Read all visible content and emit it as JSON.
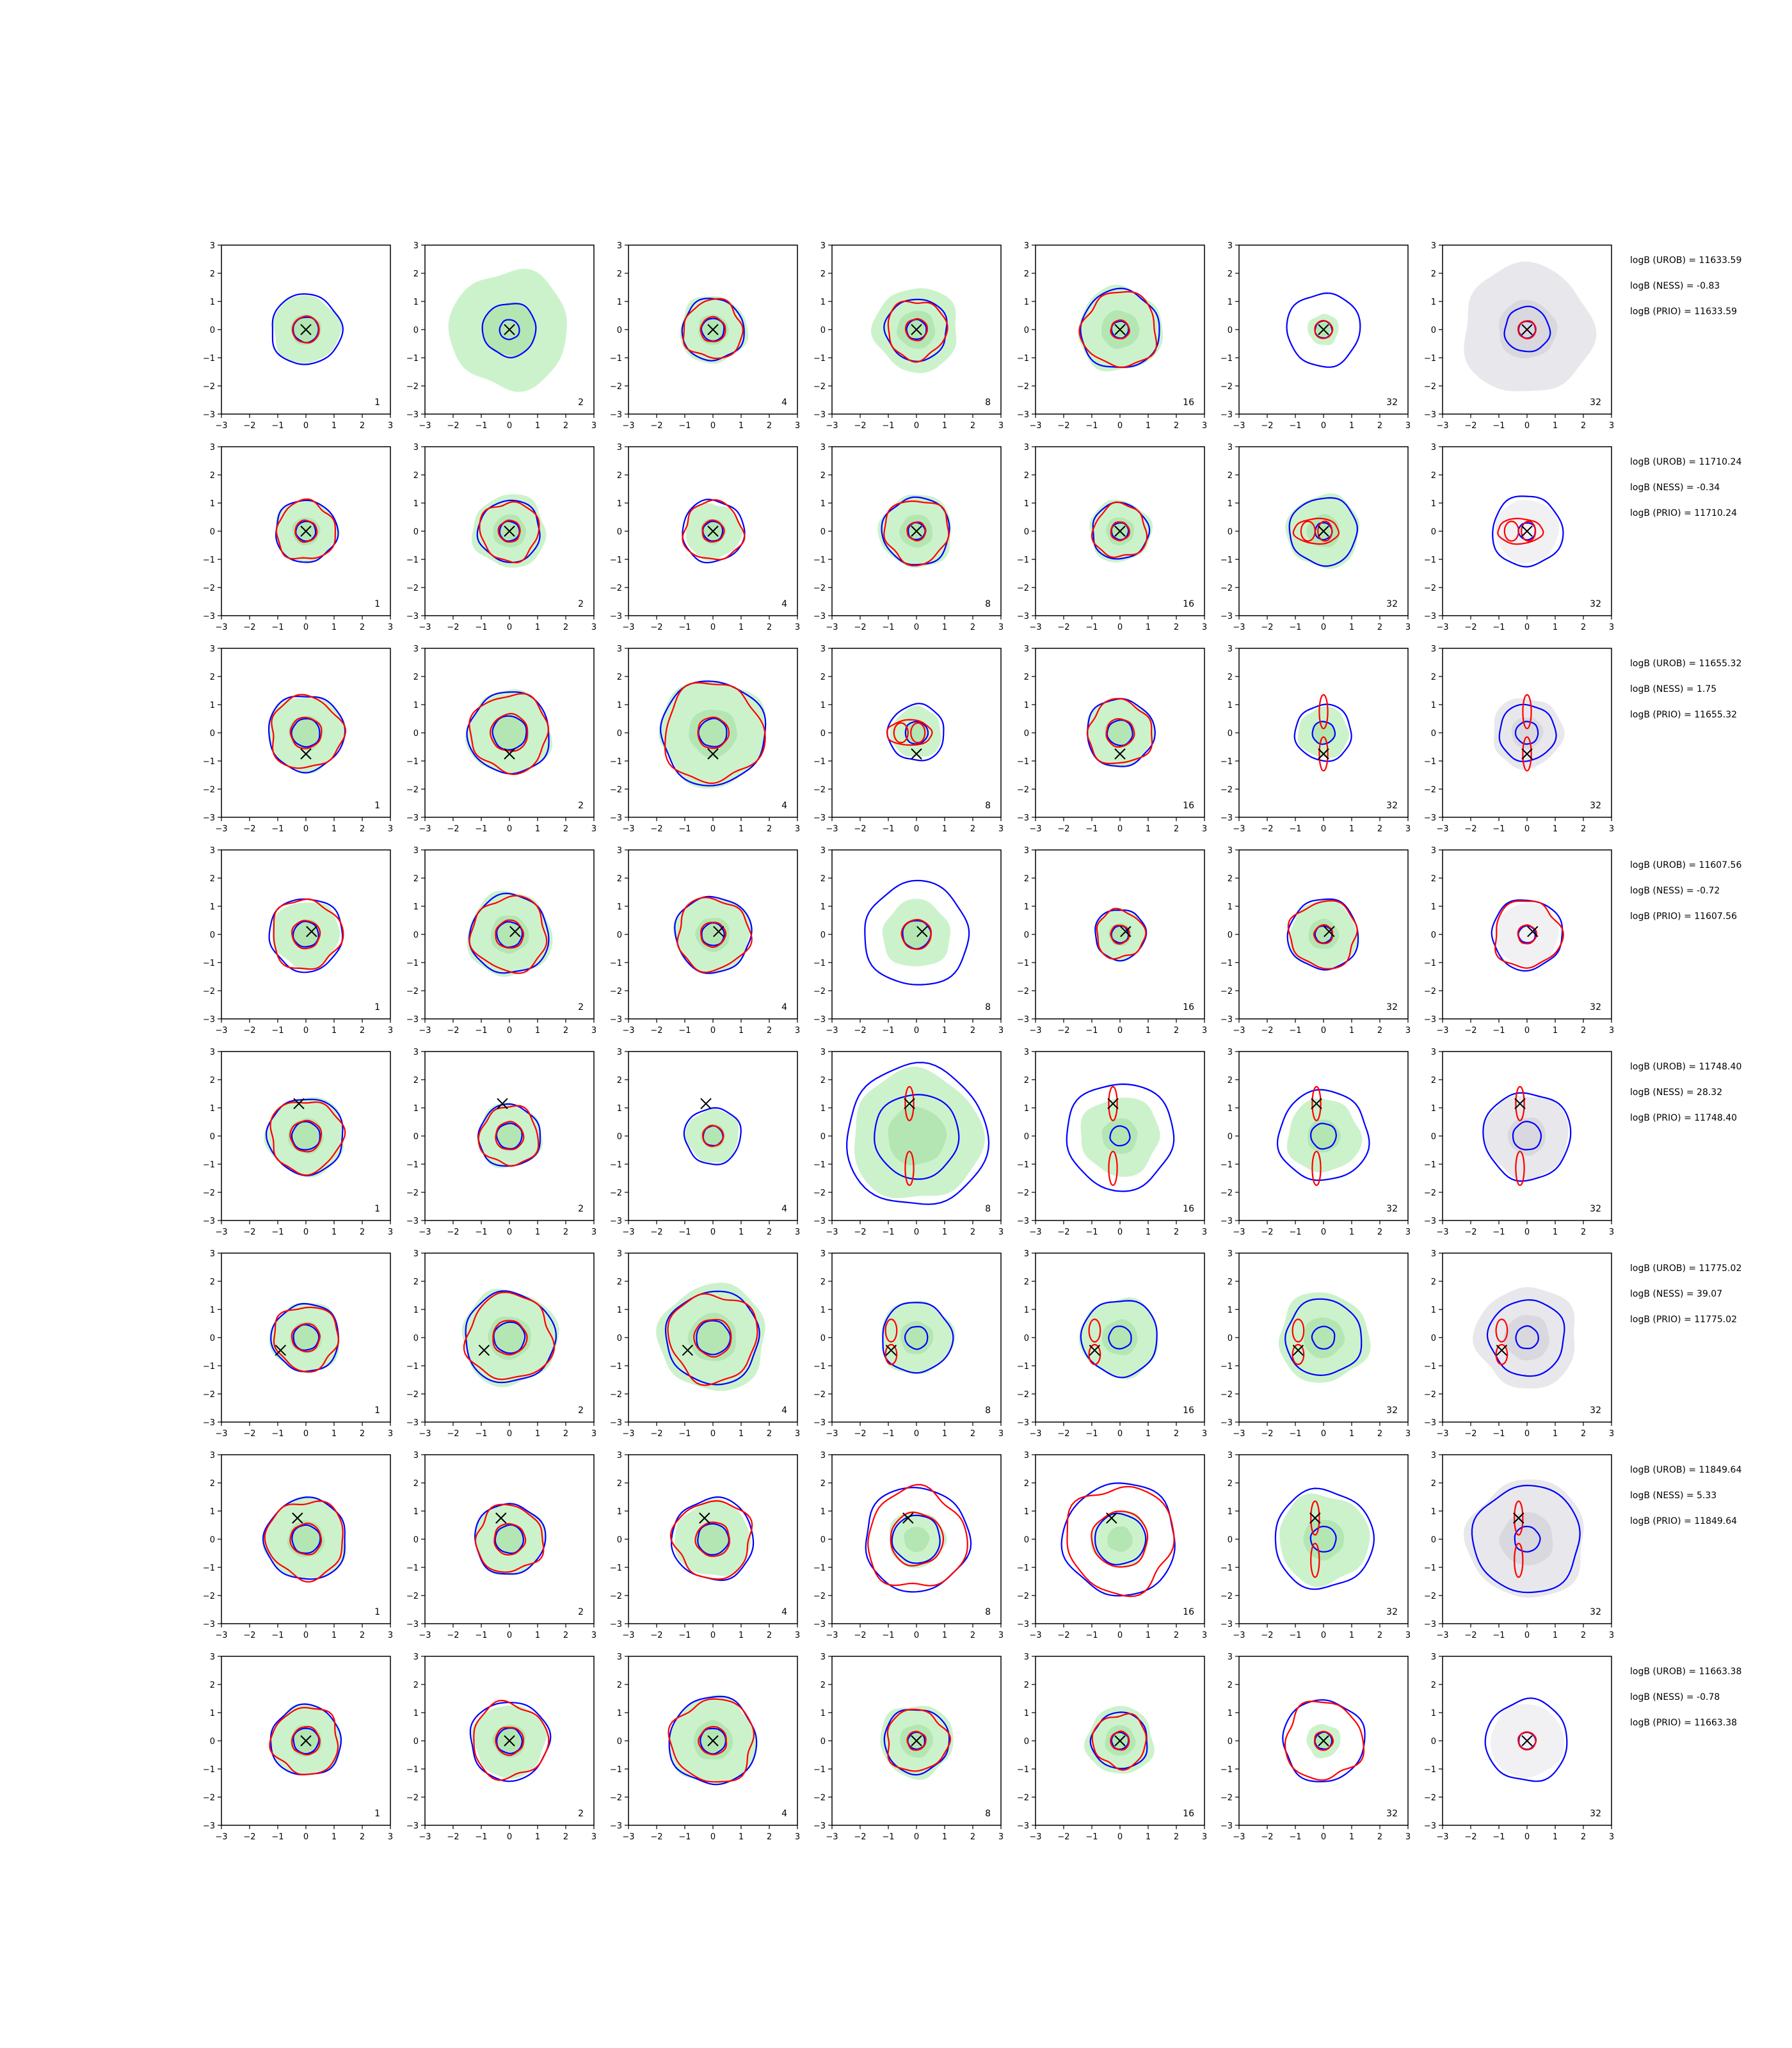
{
  "chart_data": {
    "type": "contour",
    "title": "",
    "xlabel": "",
    "ylabel": "",
    "xlim": [
      -3,
      3
    ],
    "ylim": [
      -3,
      3
    ],
    "xticks": [
      "−3",
      "−2",
      "−1",
      "0",
      "1",
      "2",
      "3"
    ],
    "yticks": [
      "−3",
      "−2",
      "−1",
      "0",
      "1",
      "2",
      "3"
    ],
    "grid": false,
    "legend": "none",
    "colors": {
      "outer_contour": "#0000ff",
      "inner_contour": "#ff0000",
      "fill_green": "#ccf2cc",
      "fill_green_inner": "#b3e6b3",
      "fill_gray": "#e8e8ec",
      "fill_gray_inner": "#d8d8de",
      "marker": "#000000"
    },
    "columns": [
      "1",
      "2",
      "4",
      "8",
      "16",
      "32",
      "32"
    ],
    "rows": [
      {
        "marker": [
          0.0,
          0.0
        ],
        "outer_radius": [
          1.25,
          0.95,
          1.1,
          1.1,
          1.4,
          1.3,
          0.8
        ],
        "inner_radius": [
          0.45,
          0.35,
          0.4,
          0.35,
          0.3,
          0.3,
          0.3
        ],
        "inner_shape": [
          "ring",
          "none",
          "wavy",
          "wavy",
          "wavy",
          "ring",
          "ring"
        ],
        "fill_radius": [
          1.2,
          2.1,
          1.2,
          1.5,
          1.5,
          0.55,
          2.3
        ],
        "stats": [
          "logB (UROB) = 11633.59",
          "logB (NESS) = -0.83",
          "logB (PRIO) = 11633.59"
        ]
      },
      {
        "marker": [
          0.0,
          0.0
        ],
        "outer_radius": [
          1.1,
          1.1,
          1.1,
          1.2,
          1.0,
          1.2,
          1.25
        ],
        "inner_radius": [
          0.35,
          0.35,
          0.35,
          0.3,
          0.3,
          0.3,
          0.3
        ],
        "inner_shape": [
          "wavy",
          "wavy",
          "wavy",
          "wavy",
          "wavy",
          "twin",
          "twin"
        ],
        "fill_radius": [
          1.1,
          1.3,
          1.0,
          1.3,
          1.1,
          1.3,
          0.0
        ],
        "stats": [
          "logB (UROB) = 11710.24",
          "logB (NESS) = -0.34",
          "logB (PRIO) = 11710.24"
        ]
      },
      {
        "marker": [
          0.0,
          -0.75
        ],
        "outer_radius": [
          1.35,
          1.45,
          1.85,
          1.0,
          1.2,
          1.0,
          1.0
        ],
        "inner_radius": [
          0.5,
          0.6,
          0.5,
          0.4,
          0.45,
          0.4,
          0.4
        ],
        "inner_shape": [
          "wavy",
          "wavy",
          "wavy",
          "twin",
          "wavy",
          "vertical",
          "vertical"
        ],
        "fill_radius": [
          1.35,
          1.5,
          1.9,
          0.9,
          1.2,
          0.9,
          1.25
        ],
        "stats": [
          "logB (UROB) = 11655.32",
          "logB (NESS) = 1.75",
          "logB (PRIO) = 11655.32"
        ]
      },
      {
        "marker": [
          0.2,
          0.1
        ],
        "outer_radius": [
          1.3,
          1.4,
          1.35,
          1.85,
          0.9,
          1.25,
          1.25
        ],
        "inner_radius": [
          0.45,
          0.45,
          0.4,
          0.5,
          0.3,
          0.3,
          0.3
        ],
        "inner_shape": [
          "wavy",
          "wavy",
          "wavy",
          "ring",
          "wavy",
          "wavy",
          "wavy"
        ],
        "fill_radius": [
          1.2,
          1.5,
          1.35,
          1.2,
          0.9,
          1.2,
          0.0
        ],
        "stats": [
          "logB (UROB) = 11607.56",
          "logB (NESS) = -0.72",
          "logB (PRIO) = 11607.56"
        ]
      },
      {
        "marker": [
          -0.25,
          1.15
        ],
        "outer_radius": [
          1.35,
          1.1,
          1.0,
          2.5,
          1.9,
          1.6,
          1.55
        ],
        "inner_radius": [
          0.5,
          0.45,
          0.35,
          1.5,
          0.35,
          0.45,
          0.5
        ],
        "inner_shape": [
          "wavy",
          "wavy",
          "ring",
          "vertical",
          "vertical",
          "vertical",
          "vertical"
        ],
        "fill_radius": [
          1.4,
          1.15,
          0.95,
          2.3,
          1.4,
          1.3,
          1.5
        ],
        "stats": [
          "logB (UROB) = 11748.40",
          "logB (NESS) = 28.32",
          "logB (PRIO) = 11748.40"
        ]
      },
      {
        "marker": [
          -0.9,
          -0.45
        ],
        "outer_radius": [
          1.2,
          1.6,
          1.65,
          1.25,
          1.35,
          1.35,
          1.35
        ],
        "inner_radius": [
          0.45,
          0.55,
          0.6,
          0.4,
          0.4,
          0.4,
          0.4
        ],
        "inner_shape": [
          "wavy",
          "wavy",
          "wavy",
          "side",
          "side",
          "side",
          "side"
        ],
        "fill_radius": [
          1.25,
          1.7,
          1.9,
          1.3,
          1.4,
          1.6,
          1.8
        ],
        "stats": [
          "logB (UROB) = 11775.02",
          "logB (NESS) = 39.07",
          "logB (PRIO) = 11775.02"
        ]
      },
      {
        "marker": [
          -0.3,
          0.75
        ],
        "outer_radius": [
          1.45,
          1.25,
          1.45,
          1.85,
          2.0,
          1.75,
          1.9
        ],
        "inner_radius": [
          0.5,
          0.5,
          0.55,
          0.85,
          0.9,
          0.45,
          0.45
        ],
        "inner_shape": [
          "wavy",
          "wavy",
          "wavy",
          "wavy",
          "wavy",
          "vertical",
          "vertical"
        ],
        "fill_radius": [
          1.45,
          1.25,
          1.35,
          1.0,
          1.0,
          1.6,
          2.1
        ],
        "stats": [
          "logB (UROB) = 11849.64",
          "logB (NESS) = 5.33",
          "logB (PRIO) = 11849.64"
        ]
      },
      {
        "marker": [
          0.0,
          0.0
        ],
        "outer_radius": [
          1.25,
          1.4,
          1.55,
          1.15,
          1.0,
          1.45,
          1.45
        ],
        "inner_radius": [
          0.45,
          0.45,
          0.45,
          0.3,
          0.3,
          0.3,
          0.3
        ],
        "inner_shape": [
          "wavy",
          "wavy",
          "wavy",
          "wavy",
          "wavy",
          "wavy",
          "ring"
        ],
        "fill_radius": [
          1.25,
          1.3,
          1.55,
          1.3,
          1.2,
          0.6,
          0.0
        ],
        "stats": [
          "logB (UROB) = 11663.38",
          "logB (NESS) = -0.78",
          "logB (PRIO) = 11663.38"
        ]
      }
    ]
  }
}
